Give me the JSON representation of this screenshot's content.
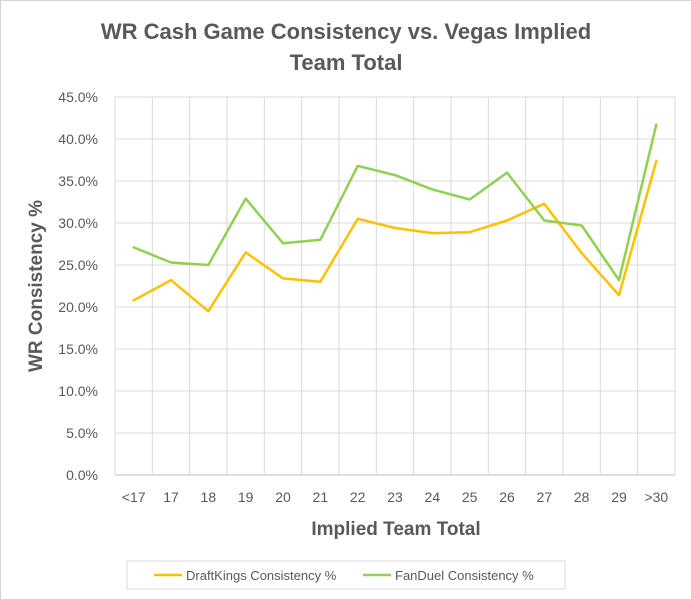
{
  "chart_data": {
    "type": "line",
    "title_lines": [
      "WR Cash Game Consistency vs. Vegas Implied",
      "Team Total"
    ],
    "xlabel": "Implied Team Total",
    "ylabel": "WR Consistency %",
    "categories": [
      "<17",
      "17",
      "18",
      "19",
      "20",
      "21",
      "22",
      "23",
      "24",
      "25",
      "26",
      "27",
      "28",
      "29",
      ">30"
    ],
    "y_ticks": [
      "0.0%",
      "5.0%",
      "10.0%",
      "15.0%",
      "20.0%",
      "25.0%",
      "30.0%",
      "35.0%",
      "40.0%",
      "45.0%"
    ],
    "ylim": [
      0,
      45
    ],
    "grid": true,
    "legend_position": "bottom",
    "series": [
      {
        "name": "DraftKings Consistency %",
        "color": "#FFC000",
        "values": [
          20.8,
          23.2,
          19.5,
          26.5,
          23.4,
          23.0,
          30.5,
          29.4,
          28.8,
          28.9,
          30.3,
          32.3,
          26.4,
          21.4,
          37.4
        ]
      },
      {
        "name": "FanDuel Consistency %",
        "color": "#92D050",
        "values": [
          27.1,
          25.3,
          25.0,
          32.9,
          27.6,
          28.0,
          36.8,
          35.7,
          34.0,
          32.8,
          36.0,
          30.3,
          29.7,
          23.2,
          41.7
        ]
      }
    ]
  }
}
